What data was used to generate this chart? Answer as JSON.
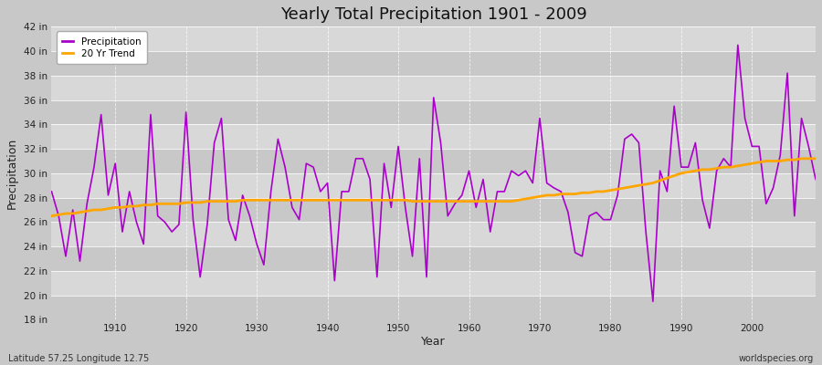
{
  "title": "Yearly Total Precipitation 1901 - 2009",
  "xlabel": "Year",
  "ylabel": "Precipitation",
  "subtitle": "Latitude 57.25 Longitude 12.75",
  "watermark": "worldspecies.org",
  "precip_color": "#aa00cc",
  "trend_color": "#FFA500",
  "bg_color": "#c8c8c8",
  "plot_bg_color": "#d0d0d0",
  "band_light": "#d8d8d8",
  "band_dark": "#c8c8c8",
  "ylim": [
    18,
    42
  ],
  "yticks": [
    18,
    20,
    22,
    24,
    26,
    28,
    30,
    32,
    34,
    36,
    38,
    40,
    42
  ],
  "xticks": [
    1910,
    1920,
    1930,
    1940,
    1950,
    1960,
    1970,
    1980,
    1990,
    2000
  ],
  "xlim": [
    1901,
    2009
  ],
  "years": [
    1901,
    1902,
    1903,
    1904,
    1905,
    1906,
    1907,
    1908,
    1909,
    1910,
    1911,
    1912,
    1913,
    1914,
    1915,
    1916,
    1917,
    1918,
    1919,
    1920,
    1921,
    1922,
    1923,
    1924,
    1925,
    1926,
    1927,
    1928,
    1929,
    1930,
    1931,
    1932,
    1933,
    1934,
    1935,
    1936,
    1937,
    1938,
    1939,
    1940,
    1941,
    1942,
    1943,
    1944,
    1945,
    1946,
    1947,
    1948,
    1949,
    1950,
    1951,
    1952,
    1953,
    1954,
    1955,
    1956,
    1957,
    1958,
    1959,
    1960,
    1961,
    1962,
    1963,
    1964,
    1965,
    1966,
    1967,
    1968,
    1969,
    1970,
    1971,
    1972,
    1973,
    1974,
    1975,
    1976,
    1977,
    1978,
    1979,
    1980,
    1981,
    1982,
    1983,
    1984,
    1985,
    1986,
    1987,
    1988,
    1989,
    1990,
    1991,
    1992,
    1993,
    1994,
    1995,
    1996,
    1997,
    1998,
    1999,
    2000,
    2001,
    2002,
    2003,
    2004,
    2005,
    2006,
    2007,
    2008,
    2009
  ],
  "precip": [
    28.5,
    26.5,
    23.2,
    27.0,
    22.8,
    27.5,
    30.5,
    34.8,
    28.2,
    30.8,
    25.2,
    28.5,
    26.0,
    24.2,
    34.8,
    26.5,
    26.0,
    25.2,
    25.8,
    35.0,
    26.2,
    21.5,
    25.8,
    32.5,
    34.5,
    26.2,
    24.5,
    28.2,
    26.5,
    24.2,
    22.5,
    28.5,
    32.8,
    30.5,
    27.2,
    26.2,
    30.8,
    30.5,
    28.5,
    29.2,
    21.2,
    28.5,
    28.5,
    31.2,
    31.2,
    29.5,
    21.5,
    30.8,
    27.2,
    32.2,
    27.2,
    23.2,
    31.2,
    21.5,
    36.2,
    32.5,
    26.5,
    27.5,
    28.2,
    30.2,
    27.2,
    29.5,
    25.2,
    28.5,
    28.5,
    30.2,
    29.8,
    30.2,
    29.2,
    34.5,
    29.2,
    28.8,
    28.5,
    26.8,
    23.5,
    23.2,
    26.5,
    26.8,
    26.2,
    26.2,
    28.2,
    32.8,
    33.2,
    32.5,
    25.2,
    19.5,
    30.2,
    28.5,
    35.5,
    30.5,
    30.5,
    32.5,
    27.8,
    25.5,
    30.2,
    31.2,
    30.5,
    40.5,
    34.5,
    32.2,
    32.2,
    27.5,
    28.8,
    31.5,
    38.2,
    26.5,
    34.5,
    32.2,
    29.5
  ],
  "trend": [
    26.5,
    26.6,
    26.7,
    26.7,
    26.8,
    26.9,
    27.0,
    27.0,
    27.1,
    27.2,
    27.2,
    27.3,
    27.3,
    27.4,
    27.4,
    27.5,
    27.5,
    27.5,
    27.5,
    27.6,
    27.6,
    27.6,
    27.7,
    27.7,
    27.7,
    27.7,
    27.7,
    27.8,
    27.8,
    27.8,
    27.8,
    27.8,
    27.8,
    27.8,
    27.8,
    27.8,
    27.8,
    27.8,
    27.8,
    27.8,
    27.8,
    27.8,
    27.8,
    27.8,
    27.8,
    27.8,
    27.8,
    27.8,
    27.8,
    27.8,
    27.8,
    27.7,
    27.7,
    27.7,
    27.7,
    27.7,
    27.7,
    27.7,
    27.7,
    27.7,
    27.7,
    27.7,
    27.7,
    27.7,
    27.7,
    27.7,
    27.8,
    27.9,
    28.0,
    28.1,
    28.2,
    28.2,
    28.3,
    28.3,
    28.3,
    28.4,
    28.4,
    28.5,
    28.5,
    28.6,
    28.7,
    28.8,
    28.9,
    29.0,
    29.1,
    29.2,
    29.4,
    29.6,
    29.8,
    30.0,
    30.1,
    30.2,
    30.3,
    30.3,
    30.4,
    30.5,
    30.5,
    30.6,
    30.7,
    30.8,
    30.9,
    31.0,
    31.0,
    31.0,
    31.1,
    31.1,
    31.2,
    31.2,
    31.2
  ]
}
